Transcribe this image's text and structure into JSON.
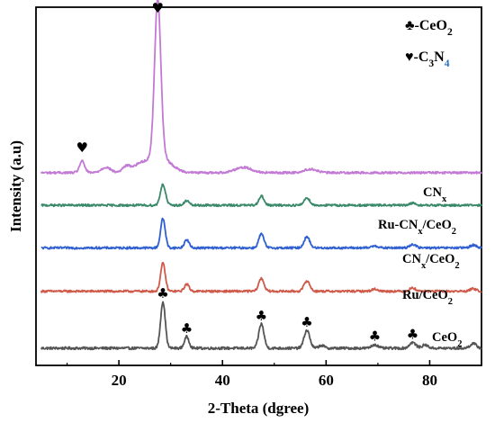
{
  "chart_data": {
    "type": "line",
    "title": "",
    "xlabel": "2-Theta (dgree)",
    "ylabel": "Intensity (a.u)",
    "xlim": [
      4,
      90
    ],
    "ylim": [
      0,
      100
    ],
    "xticks": [
      20,
      40,
      60,
      80
    ],
    "yticks_visible": false,
    "grid": false,
    "legend": {
      "placement": "top-right",
      "entries": [
        {
          "symbol": "♣",
          "label": "-CeO",
          "subscript": "2"
        },
        {
          "symbol": "♥",
          "label": "-C",
          "subscript": "3",
          "label2": "N",
          "subscript2": "4",
          "label2_color": "#2a6fbf"
        }
      ]
    },
    "series": [
      {
        "name": "CeO",
        "name_sub": "2",
        "color": "#555555",
        "baseline": 4.8,
        "noise": 0.35,
        "peaks": [
          {
            "x": 28.5,
            "h": 13.0,
            "w": 0.45
          },
          {
            "x": 33.1,
            "h": 3.2,
            "w": 0.45
          },
          {
            "x": 47.5,
            "h": 6.8,
            "w": 0.5
          },
          {
            "x": 56.3,
            "h": 5.0,
            "w": 0.55
          },
          {
            "x": 59.1,
            "h": 0.8,
            "w": 0.5
          },
          {
            "x": 69.4,
            "h": 1.0,
            "w": 0.6
          },
          {
            "x": 76.7,
            "h": 1.6,
            "w": 0.6
          },
          {
            "x": 79.1,
            "h": 0.9,
            "w": 0.6
          },
          {
            "x": 88.4,
            "h": 1.3,
            "w": 0.6
          }
        ]
      },
      {
        "name": "Ru/CeO",
        "name_sub": "2",
        "color": "#d05a4a",
        "baseline": 20.7,
        "noise": 0.3,
        "peaks": [
          {
            "x": 28.5,
            "h": 7.8,
            "w": 0.45
          },
          {
            "x": 33.1,
            "h": 2.0,
            "w": 0.45
          },
          {
            "x": 47.5,
            "h": 3.6,
            "w": 0.5
          },
          {
            "x": 56.3,
            "h": 2.9,
            "w": 0.55
          },
          {
            "x": 69.4,
            "h": 0.6,
            "w": 0.6
          },
          {
            "x": 76.7,
            "h": 0.9,
            "w": 0.6
          },
          {
            "x": 88.4,
            "h": 0.7,
            "w": 0.6
          }
        ]
      },
      {
        "name": "CN",
        "name_sub": "x",
        "name_tail": "/CeO",
        "name_tail_sub": "2",
        "color": "#2f5fd0",
        "baseline": 32.8,
        "noise": 0.3,
        "peaks": [
          {
            "x": 28.5,
            "h": 8.2,
            "w": 0.45
          },
          {
            "x": 33.1,
            "h": 2.3,
            "w": 0.45
          },
          {
            "x": 47.5,
            "h": 3.9,
            "w": 0.5
          },
          {
            "x": 56.3,
            "h": 3.1,
            "w": 0.55
          },
          {
            "x": 69.4,
            "h": 0.6,
            "w": 0.6
          },
          {
            "x": 76.7,
            "h": 1.0,
            "w": 0.6
          },
          {
            "x": 88.4,
            "h": 0.8,
            "w": 0.6
          }
        ]
      },
      {
        "name": "Ru-CN",
        "name_sub": "x",
        "name_tail": "/CeO",
        "name_tail_sub": "2",
        "color": "#3a8a6a",
        "baseline": 44.7,
        "noise": 0.3,
        "peaks": [
          {
            "x": 28.5,
            "h": 5.8,
            "w": 0.5
          },
          {
            "x": 33.1,
            "h": 1.3,
            "w": 0.45
          },
          {
            "x": 47.5,
            "h": 2.6,
            "w": 0.5
          },
          {
            "x": 56.3,
            "h": 2.1,
            "w": 0.55
          },
          {
            "x": 76.7,
            "h": 0.6,
            "w": 0.6
          }
        ]
      },
      {
        "name": "CN",
        "name_sub": "x",
        "color": "#c27ad4",
        "baseline": 53.8,
        "noise": 0.3,
        "peaks": [
          {
            "x": 12.9,
            "h": 3.2,
            "w": 0.5
          },
          {
            "x": 17.5,
            "h": 1.5,
            "w": 0.9
          },
          {
            "x": 21.5,
            "h": 1.8,
            "w": 0.8
          },
          {
            "x": 23.8,
            "h": 1.4,
            "w": 1.0
          },
          {
            "x": 27.5,
            "h": 43.5,
            "w": 0.6
          },
          {
            "x": 27.5,
            "h": 5.0,
            "w": 2.2
          },
          {
            "x": 44.0,
            "h": 1.5,
            "w": 1.6
          },
          {
            "x": 57.0,
            "h": 1.0,
            "w": 1.2
          }
        ]
      }
    ],
    "markers": [
      {
        "symbol": "♥",
        "x": 12.9,
        "y": 59.5
      },
      {
        "symbol": "♥",
        "x": 27.5,
        "y": 98.5
      },
      {
        "symbol": "♣",
        "x": 28.5,
        "y": 18.8
      },
      {
        "symbol": "♣",
        "x": 33.1,
        "y": 9.0
      },
      {
        "symbol": "♣",
        "x": 47.5,
        "y": 12.6
      },
      {
        "symbol": "♣",
        "x": 56.3,
        "y": 10.8
      },
      {
        "symbol": "♣",
        "x": 69.4,
        "y": 6.9
      },
      {
        "symbol": "♣",
        "x": 76.7,
        "y": 7.4
      }
    ]
  }
}
